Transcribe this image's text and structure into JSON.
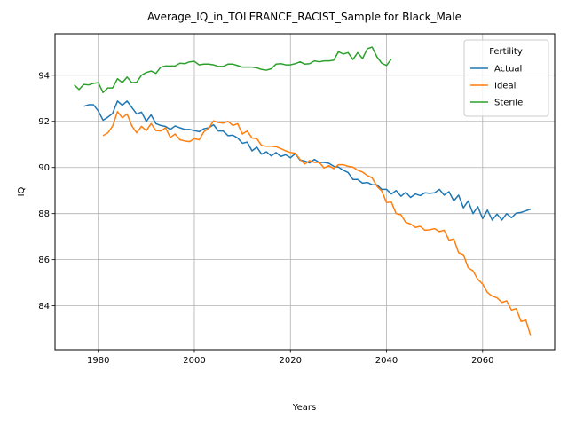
{
  "chart_data": {
    "type": "line",
    "title": "Average_IQ_in_TOLERANCE_RACIST_Sample for Black_Male",
    "xlabel": "Years",
    "ylabel": "IQ",
    "xlim": [
      1971,
      2075
    ],
    "ylim": [
      82.1,
      95.8
    ],
    "x_ticks": [
      1980,
      2000,
      2020,
      2040,
      2060
    ],
    "y_ticks": [
      84,
      86,
      88,
      90,
      92,
      94
    ],
    "grid": true,
    "legend": {
      "title": "Fertility",
      "placement": "top-right"
    },
    "series": [
      {
        "name": "Actual",
        "color": "#1f77b4",
        "x": [
          1977,
          1978,
          1979,
          1980,
          1981,
          1982,
          1983,
          1984,
          1985,
          1986,
          1987,
          1988,
          1989,
          1990,
          1991,
          1992,
          1993,
          1994,
          1995,
          1996,
          1997,
          1998,
          1999,
          2000,
          2001,
          2002,
          2003,
          2004,
          2005,
          2006,
          2007,
          2008,
          2009,
          2010,
          2011,
          2012,
          2013,
          2014,
          2015,
          2016,
          2017,
          2018,
          2019,
          2020,
          2021,
          2022,
          2023,
          2024,
          2025,
          2026,
          2027,
          2028,
          2029,
          2030,
          2031,
          2032,
          2033,
          2034,
          2035,
          2036,
          2037,
          2038,
          2039,
          2040,
          2041,
          2042,
          2043,
          2044,
          2045,
          2046,
          2047,
          2048,
          2049,
          2050,
          2051,
          2052,
          2053,
          2054,
          2055,
          2056,
          2057,
          2058,
          2059,
          2060,
          2061,
          2062,
          2063,
          2064,
          2065,
          2066,
          2067,
          2068,
          2069,
          2070
        ],
        "values": [
          92.65,
          92.72,
          92.72,
          92.45,
          92.05,
          92.18,
          92.35,
          92.88,
          92.7,
          92.88,
          92.6,
          92.32,
          92.4,
          92.0,
          92.28,
          91.9,
          91.82,
          91.78,
          91.65,
          91.8,
          91.72,
          91.65,
          91.65,
          91.6,
          91.55,
          91.68,
          91.72,
          91.85,
          91.58,
          91.58,
          91.38,
          91.4,
          91.28,
          91.05,
          91.1,
          90.72,
          90.88,
          90.58,
          90.68,
          90.5,
          90.65,
          90.48,
          90.55,
          90.42,
          90.6,
          90.32,
          90.28,
          90.2,
          90.35,
          90.22,
          90.22,
          90.18,
          90.05,
          90.02,
          89.88,
          89.78,
          89.48,
          89.48,
          89.32,
          89.35,
          89.25,
          89.25,
          89.05,
          89.05,
          88.85,
          89.0,
          88.75,
          88.92,
          88.7,
          88.85,
          88.78,
          88.9,
          88.88,
          88.9,
          89.05,
          88.8,
          88.95,
          88.55,
          88.8,
          88.25,
          88.55,
          88.0,
          88.3,
          87.78,
          88.15,
          87.72,
          87.98,
          87.72,
          88.0,
          87.82,
          88.02,
          88.05,
          88.12,
          88.2
        ]
      },
      {
        "name": "Ideal",
        "color": "#ff7f0e",
        "x": [
          1981,
          1982,
          1983,
          1984,
          1985,
          1986,
          1987,
          1988,
          1989,
          1990,
          1991,
          1992,
          1993,
          1994,
          1995,
          1996,
          1997,
          1998,
          1999,
          2000,
          2001,
          2002,
          2003,
          2004,
          2005,
          2006,
          2007,
          2008,
          2009,
          2010,
          2011,
          2012,
          2013,
          2014,
          2015,
          2016,
          2017,
          2018,
          2019,
          2020,
          2021,
          2022,
          2023,
          2024,
          2025,
          2026,
          2027,
          2028,
          2029,
          2030,
          2031,
          2032,
          2033,
          2034,
          2035,
          2036,
          2037,
          2038,
          2039,
          2040,
          2041,
          2042,
          2043,
          2044,
          2045,
          2046,
          2047,
          2048,
          2049,
          2050,
          2051,
          2052,
          2053,
          2054,
          2055,
          2056,
          2057,
          2058,
          2059,
          2060,
          2061,
          2062,
          2063,
          2064,
          2065,
          2066,
          2067,
          2068,
          2069,
          2070
        ],
        "values": [
          91.38,
          91.5,
          91.8,
          92.42,
          92.15,
          92.32,
          91.8,
          91.5,
          91.78,
          91.6,
          91.9,
          91.6,
          91.58,
          91.72,
          91.3,
          91.45,
          91.2,
          91.15,
          91.12,
          91.25,
          91.2,
          91.55,
          91.7,
          92.02,
          91.95,
          91.92,
          92.0,
          91.82,
          91.9,
          91.45,
          91.58,
          91.28,
          91.25,
          90.95,
          90.92,
          90.92,
          90.9,
          90.82,
          90.72,
          90.65,
          90.62,
          90.35,
          90.15,
          90.3,
          90.22,
          90.22,
          89.98,
          90.08,
          89.95,
          90.12,
          90.12,
          90.05,
          90.02,
          89.88,
          89.8,
          89.65,
          89.55,
          89.18,
          88.98,
          88.48,
          88.5,
          88.0,
          87.95,
          87.62,
          87.55,
          87.4,
          87.45,
          87.28,
          87.3,
          87.35,
          87.22,
          87.28,
          86.85,
          86.9,
          86.3,
          86.22,
          85.65,
          85.52,
          85.15,
          84.95,
          84.58,
          84.42,
          84.35,
          84.15,
          84.22,
          83.82,
          83.88,
          83.32,
          83.38,
          82.7
        ]
      },
      {
        "name": "Sterile",
        "color": "#2ca02c",
        "x": [
          1975,
          1976,
          1977,
          1978,
          1979,
          1980,
          1981,
          1982,
          1983,
          1984,
          1985,
          1986,
          1987,
          1988,
          1989,
          1990,
          1991,
          1992,
          1993,
          1994,
          1995,
          1996,
          1997,
          1998,
          1999,
          2000,
          2001,
          2002,
          2003,
          2004,
          2005,
          2006,
          2007,
          2008,
          2009,
          2010,
          2011,
          2012,
          2013,
          2014,
          2015,
          2016,
          2017,
          2018,
          2019,
          2020,
          2021,
          2022,
          2023,
          2024,
          2025,
          2026,
          2027,
          2028,
          2029,
          2030,
          2031,
          2032,
          2033,
          2034,
          2035,
          2036,
          2037,
          2038,
          2039,
          2040,
          2041
        ],
        "values": [
          93.58,
          93.38,
          93.6,
          93.58,
          93.65,
          93.68,
          93.25,
          93.45,
          93.45,
          93.85,
          93.68,
          93.92,
          93.68,
          93.7,
          94.0,
          94.12,
          94.18,
          94.08,
          94.35,
          94.4,
          94.4,
          94.4,
          94.52,
          94.5,
          94.58,
          94.6,
          94.45,
          94.48,
          94.48,
          94.45,
          94.38,
          94.38,
          94.48,
          94.48,
          94.42,
          94.35,
          94.35,
          94.35,
          94.32,
          94.25,
          94.22,
          94.28,
          94.48,
          94.5,
          94.45,
          94.45,
          94.5,
          94.58,
          94.48,
          94.5,
          94.62,
          94.58,
          94.62,
          94.62,
          94.65,
          95.02,
          94.92,
          94.98,
          94.68,
          94.98,
          94.72,
          95.15,
          95.22,
          94.8,
          94.52,
          94.42,
          94.7
        ]
      }
    ]
  }
}
